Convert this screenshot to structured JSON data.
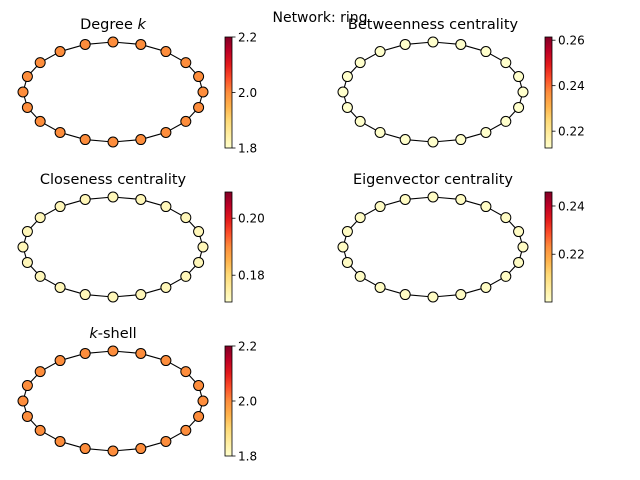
{
  "figure": {
    "suptitle": "Network: ring"
  },
  "colormap": {
    "name": "YlOrRd",
    "stops": [
      "#ffffcc",
      "#ffeda0",
      "#fed976",
      "#feb24c",
      "#fd8d3c",
      "#fc4e2a",
      "#e31a1c",
      "#bd0026",
      "#800026"
    ]
  },
  "chart_data": [
    {
      "type": "network",
      "layout": "ring",
      "title": "Degree k",
      "title_parts": [
        {
          "text": "Degree ",
          "italic": false
        },
        {
          "text": "k",
          "italic": true
        }
      ],
      "node_count": 20,
      "node_values": [
        2,
        2,
        2,
        2,
        2,
        2,
        2,
        2,
        2,
        2,
        2,
        2,
        2,
        2,
        2,
        2,
        2,
        2,
        2,
        2
      ],
      "colorbar": {
        "range": [
          1.8,
          2.2
        ],
        "ticks": [
          {
            "value": 1.8,
            "label": "1.8"
          },
          {
            "value": 2.0,
            "label": "2.0"
          },
          {
            "value": 2.2,
            "label": "2.2"
          }
        ]
      }
    },
    {
      "type": "network",
      "layout": "ring",
      "title": "Betweenness centrality",
      "title_parts": [
        {
          "text": "Betweenness centrality",
          "italic": false
        }
      ],
      "node_count": 20,
      "node_values": [
        0.211,
        0.211,
        0.211,
        0.211,
        0.211,
        0.211,
        0.211,
        0.211,
        0.211,
        0.211,
        0.211,
        0.211,
        0.211,
        0.211,
        0.211,
        0.211,
        0.211,
        0.211,
        0.211,
        0.211
      ],
      "colorbar": {
        "range": [
          0.2126,
          0.2614
        ],
        "ticks": [
          {
            "value": 0.22,
            "label": "0.22"
          },
          {
            "value": 0.24,
            "label": "0.24"
          },
          {
            "value": 0.26,
            "label": "0.26"
          }
        ]
      }
    },
    {
      "type": "network",
      "layout": "ring",
      "title": "Closeness centrality",
      "title_parts": [
        {
          "text": "Closeness centrality",
          "italic": false
        }
      ],
      "node_count": 20,
      "node_values": [
        0.1727,
        0.1727,
        0.1727,
        0.1727,
        0.1727,
        0.1727,
        0.1727,
        0.1727,
        0.1727,
        0.1727,
        0.1727,
        0.1727,
        0.1727,
        0.1727,
        0.1727,
        0.1727,
        0.1727,
        0.1727,
        0.1727,
        0.1727
      ],
      "colorbar": {
        "range": [
          0.1706,
          0.2092
        ],
        "ticks": [
          {
            "value": 0.18,
            "label": "0.18"
          },
          {
            "value": 0.2,
            "label": "0.20"
          }
        ]
      }
    },
    {
      "type": "network",
      "layout": "ring",
      "title": "Eigenvector centrality",
      "title_parts": [
        {
          "text": "Eigenvector centrality",
          "italic": false
        }
      ],
      "node_count": 20,
      "node_values": [
        0.2012,
        0.2012,
        0.2012,
        0.2012,
        0.2012,
        0.2012,
        0.2012,
        0.2012,
        0.2012,
        0.2012,
        0.2012,
        0.2012,
        0.2012,
        0.2012,
        0.2012,
        0.2012,
        0.2012,
        0.2012,
        0.2012,
        0.2012
      ],
      "colorbar": {
        "range": [
          0.2002,
          0.2458
        ],
        "ticks": [
          {
            "value": 0.22,
            "label": "0.22"
          },
          {
            "value": 0.24,
            "label": "0.24"
          }
        ]
      }
    },
    {
      "type": "network",
      "layout": "ring",
      "title": "k-shell",
      "title_parts": [
        {
          "text": "k",
          "italic": true
        },
        {
          "text": "-shell",
          "italic": false
        }
      ],
      "node_count": 20,
      "node_values": [
        2,
        2,
        2,
        2,
        2,
        2,
        2,
        2,
        2,
        2,
        2,
        2,
        2,
        2,
        2,
        2,
        2,
        2,
        2,
        2
      ],
      "colorbar": {
        "range": [
          1.8,
          2.2
        ],
        "ticks": [
          {
            "value": 1.8,
            "label": "1.8"
          },
          {
            "value": 2.0,
            "label": "2.0"
          },
          {
            "value": 2.2,
            "label": "2.2"
          }
        ]
      }
    }
  ]
}
